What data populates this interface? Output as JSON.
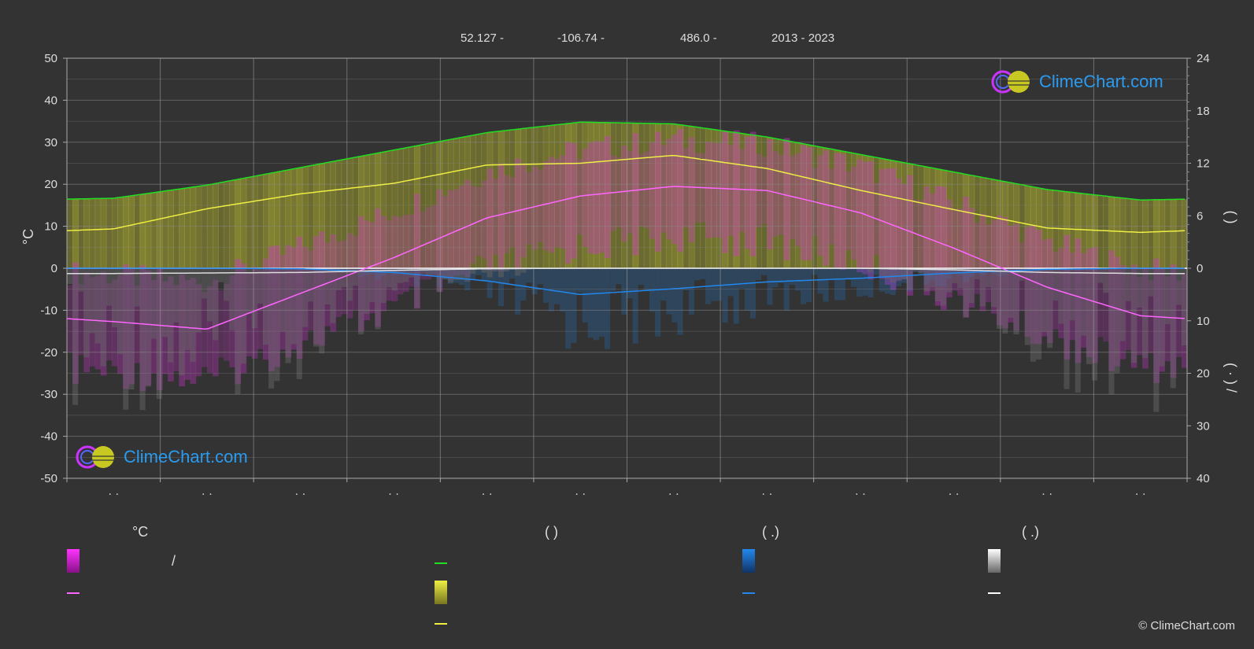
{
  "header": {
    "lat": "52.127 -",
    "lon": "-106.74 -",
    "elevation": "486.0 -",
    "years": "2013 - 2023"
  },
  "colors": {
    "background": "#333333",
    "sunshine_max": "#22dd22",
    "sunshine_avg": "#eeee44",
    "temp_avg": "#ff66ff",
    "rain": "#2288ee",
    "snow": "#dddddd",
    "temp_band": "#cc33cc",
    "sun_band": "#bbbb33"
  },
  "legend": {
    "temp_heading": "°C",
    "sun_heading": "(          )",
    "rain_heading": "(   .)",
    "snow_heading": "(   .)",
    "temp_range_label": "/"
  },
  "logo": {
    "text": "ClimeChart.com"
  },
  "copyright": "© ClimeChart.com",
  "chart_data": {
    "type": "line",
    "x": [
      1,
      2,
      3,
      4,
      5,
      6,
      7,
      8,
      9,
      10,
      11,
      12
    ],
    "x_tick_labels": [
      "· ·",
      "· ·",
      "· ·",
      "· ·",
      "· ·",
      "· ·",
      "· ·",
      "· ·",
      "· ·",
      "· ·",
      "· ·",
      "· ·"
    ],
    "ylabel_left": "°C",
    "ylabel_right_top": "(     )",
    "ylabel_right_bottom": "(  ·  )   /",
    "ylim_left": [
      -50,
      50
    ],
    "yticks_left": [
      50,
      40,
      30,
      20,
      10,
      0,
      -10,
      -20,
      -30,
      -40,
      -50
    ],
    "yticks_right_sun": [
      24,
      18,
      12,
      6,
      0
    ],
    "ylim_right_sun": [
      0,
      24
    ],
    "yticks_right_precip": [
      10,
      20,
      30,
      40
    ],
    "ylim_right_precip": [
      0,
      40
    ],
    "grid": true,
    "series": [
      {
        "key": "sunshine_max",
        "axis": "sun",
        "values": [
          8.0,
          9.5,
          11.5,
          13.5,
          15.5,
          16.7,
          16.5,
          15.0,
          13.0,
          11.0,
          9.0,
          7.8
        ]
      },
      {
        "key": "sunshine_avg",
        "axis": "sun",
        "values": [
          4.5,
          6.8,
          8.5,
          9.7,
          11.8,
          12.0,
          12.9,
          11.4,
          8.9,
          6.7,
          4.6,
          4.1
        ]
      },
      {
        "key": "temp_avg",
        "axis": "temp",
        "values": [
          -12.7,
          -14.5,
          -6.0,
          2.5,
          12.0,
          17.2,
          19.5,
          18.5,
          13.2,
          4.8,
          -4.5,
          -11.3
        ]
      },
      {
        "key": "rain",
        "axis": "precip",
        "values": [
          0.0,
          0.0,
          0.1,
          0.8,
          2.4,
          5.0,
          3.9,
          2.6,
          1.9,
          0.9,
          0.2,
          0.0
        ]
      },
      {
        "key": "snow",
        "axis": "precip",
        "values": [
          1.0,
          0.9,
          0.8,
          0.4,
          0.1,
          0.0,
          0.0,
          0.0,
          0.0,
          0.3,
          0.8,
          1.0
        ]
      }
    ]
  }
}
